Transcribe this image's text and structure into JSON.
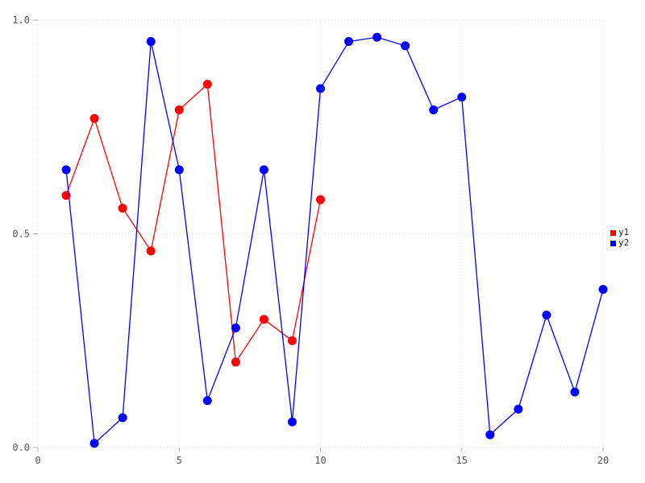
{
  "chart_data": {
    "type": "line",
    "title": "",
    "xlabel": "",
    "ylabel": "",
    "xlim": [
      0,
      20
    ],
    "ylim": [
      0.0,
      1.0
    ],
    "xticks": [
      0,
      5,
      10,
      15,
      20
    ],
    "xtick_labels": [
      "0",
      "5",
      "10",
      "15",
      "20"
    ],
    "yticks": [
      0.0,
      0.5,
      1.0
    ],
    "ytick_labels": [
      "0.0",
      "0.5",
      "1.0"
    ],
    "grid": true,
    "grid_style": "dotted",
    "legend_position": "right-center",
    "marker": "circle",
    "series": [
      {
        "name": "y1",
        "color": "#ff0000",
        "x": [
          1,
          2,
          3,
          4,
          5,
          6,
          7,
          8,
          9,
          10
        ],
        "values": [
          0.59,
          0.77,
          0.56,
          0.46,
          0.79,
          0.85,
          0.2,
          0.3,
          0.25,
          0.58
        ]
      },
      {
        "name": "y2",
        "color": "#0000ff",
        "x": [
          1,
          2,
          3,
          4,
          5,
          6,
          7,
          8,
          9,
          10,
          11,
          12,
          13,
          14,
          15,
          16,
          17,
          18,
          19,
          20
        ],
        "values": [
          0.65,
          0.01,
          0.07,
          0.95,
          0.65,
          0.11,
          0.28,
          0.65,
          0.06,
          0.84,
          0.95,
          0.96,
          0.94,
          0.79,
          0.82,
          0.03,
          0.09,
          0.31,
          0.13,
          0.37
        ]
      }
    ],
    "colors": {
      "grid": "#d9d9e3",
      "tick": "#aaaab4",
      "tick_text": "#55555f",
      "legend_text": "#222222",
      "background": "#ffffff"
    }
  }
}
